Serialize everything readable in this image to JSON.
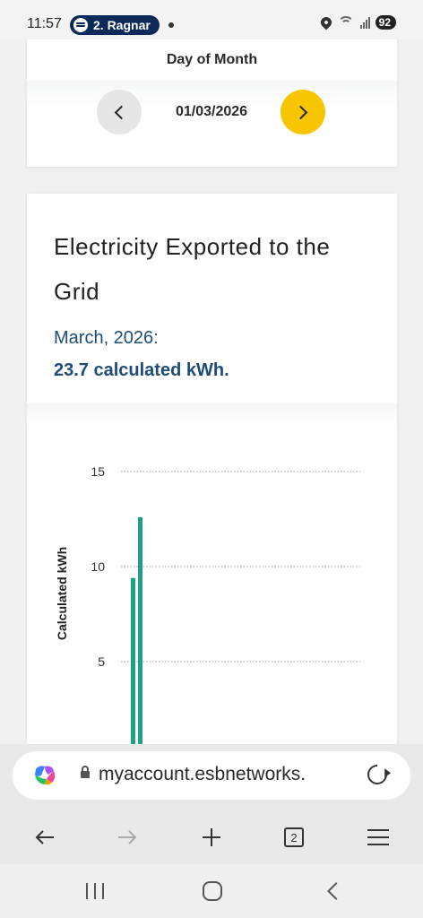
{
  "status_bar": {
    "time": "11:57",
    "media_pill": "2. Ragnar",
    "battery": "92"
  },
  "date_picker": {
    "label": "Day of Month",
    "date": "01/03/2026"
  },
  "card": {
    "title": "Electricity Exported to the Grid",
    "period": "March, 2026:",
    "total": "23.7 calculated kWh."
  },
  "chart_data": {
    "type": "bar",
    "ylabel": "Calculated kWh",
    "yticks": [
      15,
      10,
      5
    ],
    "ylim_visible": [
      0,
      15
    ],
    "grid": true,
    "series": [
      {
        "values": [
          9.4,
          12.6
        ]
      }
    ],
    "colors": {
      "bar": "#1f9e89"
    }
  },
  "browser": {
    "url": "myaccount.esbnetworks.",
    "tab_count": "2"
  },
  "colors": {
    "accent_yellow": "#f7c600",
    "text_blue": "#1e4b7a"
  }
}
